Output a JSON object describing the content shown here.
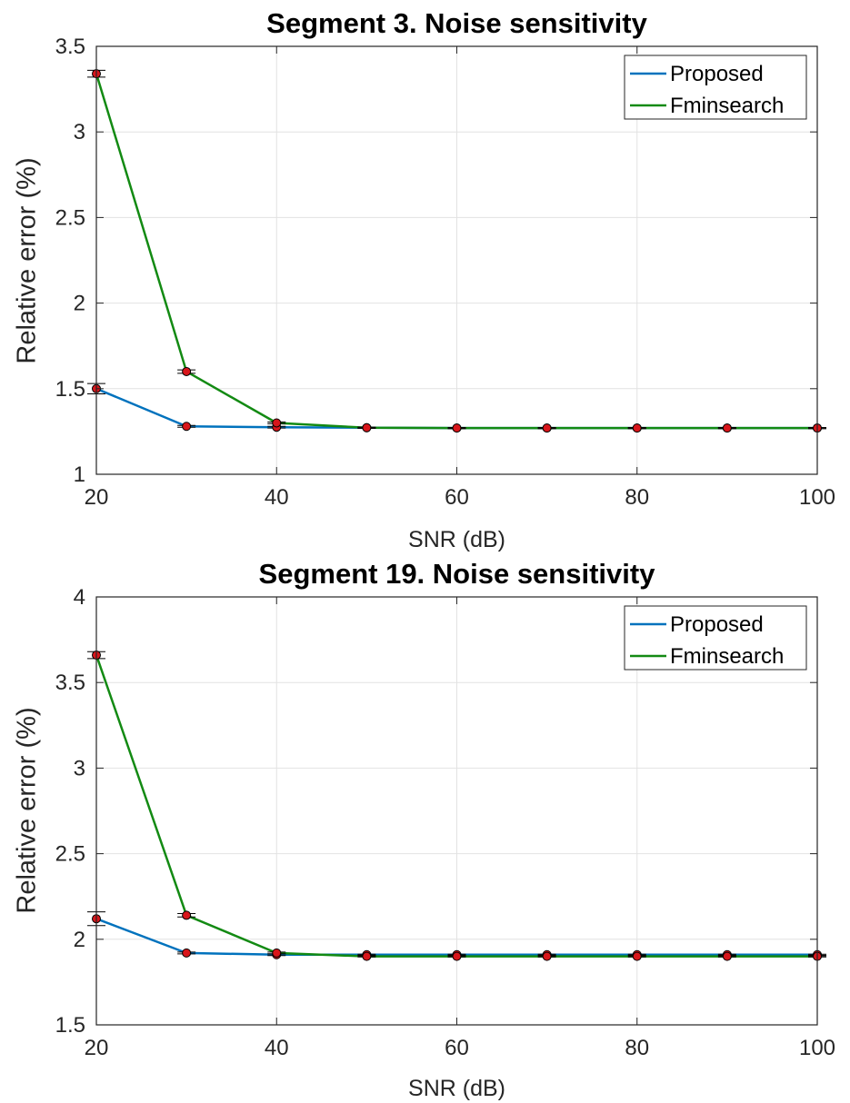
{
  "chart_data": [
    {
      "type": "line",
      "title": "Segment 3. Noise sensitivity",
      "xlabel": "SNR (dB)",
      "ylabel": "Relative error (%)",
      "xlim": [
        20,
        100
      ],
      "ylim": [
        1,
        3.5
      ],
      "xticks": [
        20,
        40,
        60,
        80,
        100
      ],
      "yticks": [
        1,
        1.5,
        2,
        2.5,
        3,
        3.5
      ],
      "ytick_labels": [
        "1",
        "1.5",
        "2",
        "2.5",
        "3",
        "3.5"
      ],
      "grid": true,
      "legend_position": "top-right",
      "x": [
        20,
        30,
        40,
        50,
        60,
        70,
        80,
        90,
        100
      ],
      "series": [
        {
          "name": "Proposed",
          "color": "#0072BD",
          "values": [
            1.5,
            1.28,
            1.275,
            1.272,
            1.27,
            1.27,
            1.27,
            1.27,
            1.27
          ],
          "errors": [
            0.03,
            0.005,
            0.005,
            0.003,
            0.003,
            0.003,
            0.003,
            0.003,
            0.003
          ]
        },
        {
          "name": "Fminsearch",
          "color": "#138A13",
          "values": [
            3.34,
            1.6,
            1.3,
            1.272,
            1.27,
            1.27,
            1.27,
            1.27,
            1.27
          ],
          "errors": [
            0.02,
            0.01,
            0.005,
            0.003,
            0.003,
            0.003,
            0.003,
            0.003,
            0.003
          ]
        }
      ]
    },
    {
      "type": "line",
      "title": "Segment 19. Noise sensitivity",
      "xlabel": "SNR (dB)",
      "ylabel": "Relative error (%)",
      "xlim": [
        20,
        100
      ],
      "ylim": [
        1.5,
        4
      ],
      "xticks": [
        20,
        40,
        60,
        80,
        100
      ],
      "yticks": [
        1.5,
        2,
        2.5,
        3,
        3.5,
        4
      ],
      "ytick_labels": [
        "1.5",
        "2",
        "2.5",
        "3",
        "3.5",
        "4"
      ],
      "grid": true,
      "legend_position": "top-right",
      "x": [
        20,
        30,
        40,
        50,
        60,
        70,
        80,
        90,
        100
      ],
      "series": [
        {
          "name": "Proposed",
          "color": "#0072BD",
          "values": [
            2.12,
            1.92,
            1.91,
            1.91,
            1.91,
            1.91,
            1.91,
            1.91,
            1.91
          ],
          "errors": [
            0.04,
            0.005,
            0.005,
            0.003,
            0.003,
            0.003,
            0.003,
            0.003,
            0.003
          ]
        },
        {
          "name": "Fminsearch",
          "color": "#138A13",
          "values": [
            3.66,
            2.14,
            1.92,
            1.9,
            1.9,
            1.9,
            1.9,
            1.9,
            1.9
          ],
          "errors": [
            0.02,
            0.01,
            0.005,
            0.003,
            0.003,
            0.003,
            0.003,
            0.003,
            0.003
          ]
        }
      ]
    }
  ]
}
